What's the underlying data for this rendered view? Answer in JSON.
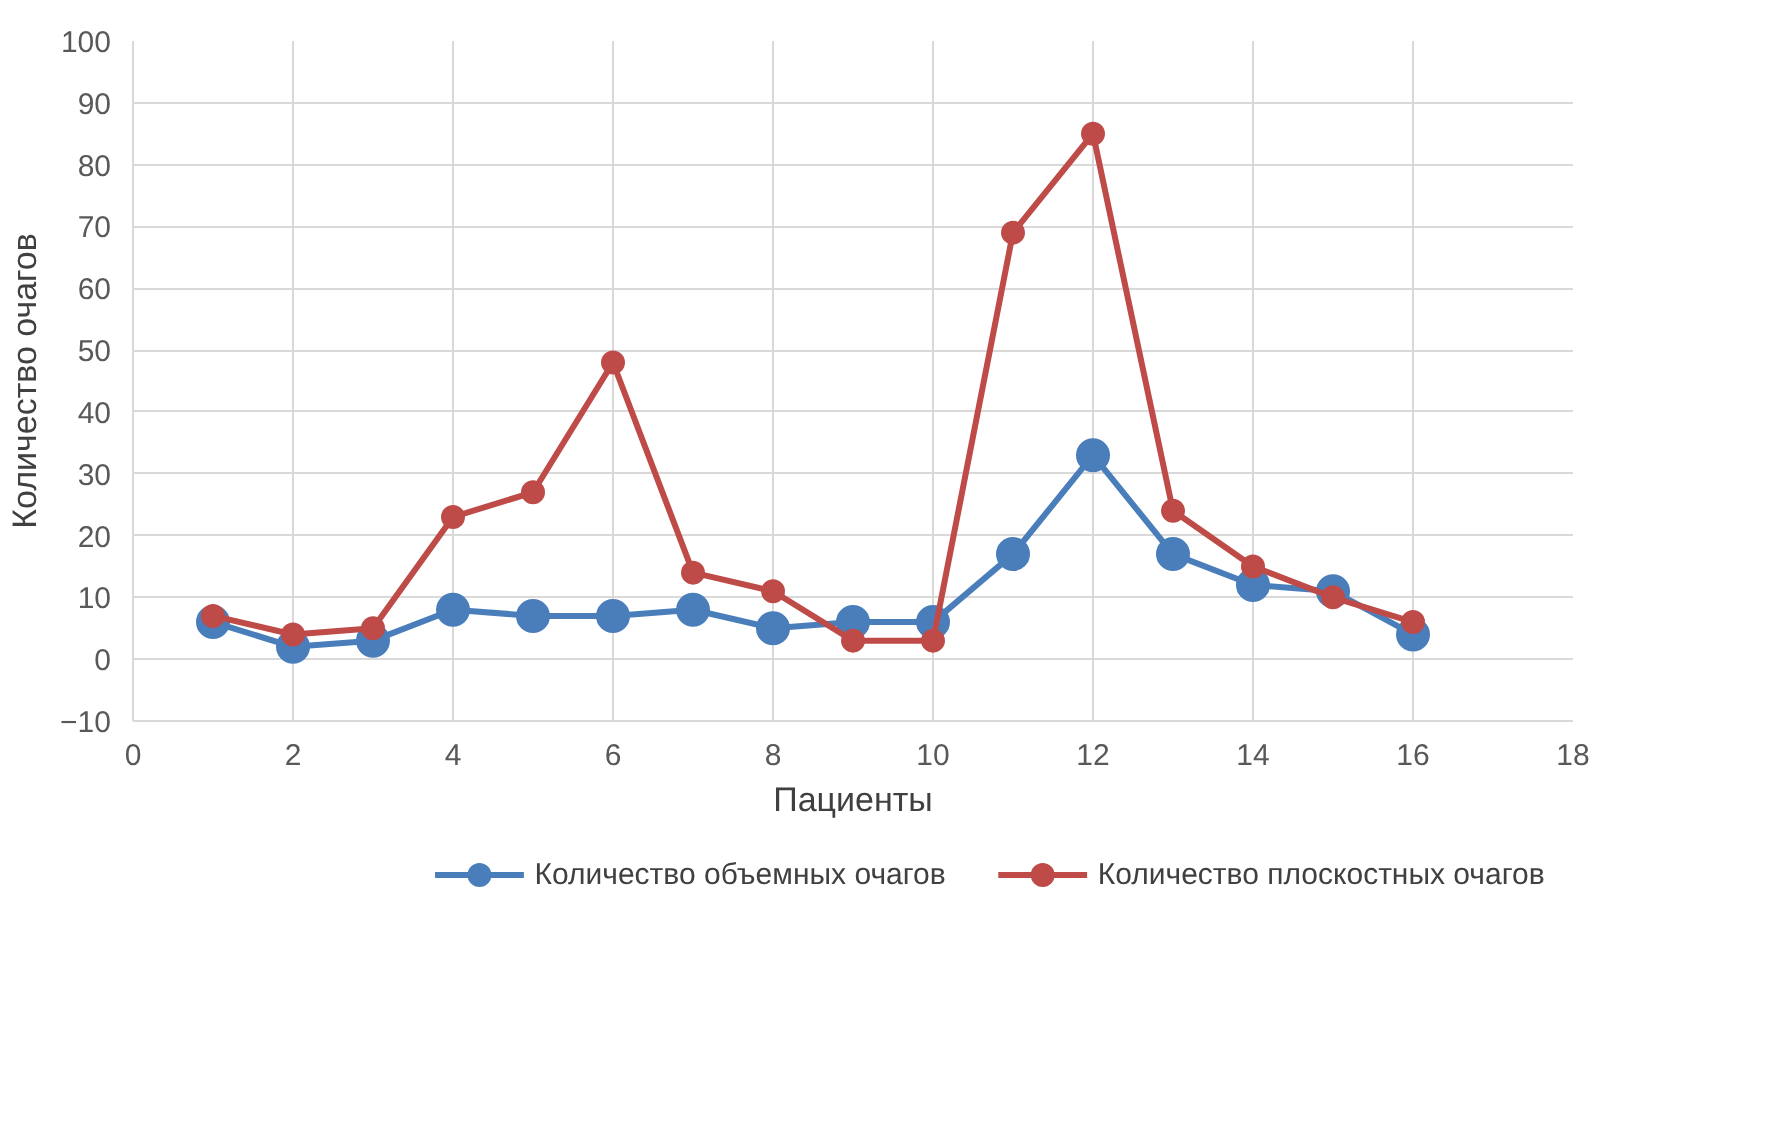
{
  "chart_data": {
    "type": "line",
    "xlabel": "Пациенты",
    "ylabel": "Количество очагов",
    "x": [
      1,
      2,
      3,
      4,
      5,
      6,
      7,
      8,
      9,
      10,
      11,
      12,
      13,
      14,
      15,
      16
    ],
    "series": [
      {
        "name": "Количество объемных очагов",
        "color": "#4a7ebb",
        "values": [
          6,
          2,
          3,
          8,
          7,
          7,
          8,
          5,
          6,
          6,
          17,
          33,
          17,
          12,
          11,
          4
        ]
      },
      {
        "name": "Количество плоскостных очагов",
        "color": "#be4b48",
        "values": [
          7,
          4,
          5,
          23,
          27,
          48,
          14,
          11,
          3,
          3,
          69,
          85,
          24,
          15,
          10,
          6
        ]
      }
    ],
    "xlim": [
      0,
      18
    ],
    "xticks": [
      0,
      2,
      4,
      6,
      8,
      10,
      12,
      14,
      16,
      18
    ],
    "ylim": [
      -10,
      100
    ],
    "yticks": [
      -10,
      0,
      10,
      20,
      30,
      40,
      50,
      60,
      70,
      80,
      90,
      100
    ],
    "grid": true,
    "legend": "bottom",
    "marker": "circle",
    "line_style": "solid"
  }
}
